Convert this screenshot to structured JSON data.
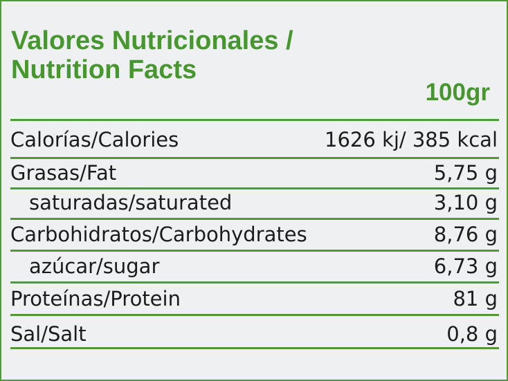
{
  "title_line1": "Valores Nutricionales /",
  "title_line2": "Nutrition Facts",
  "serving": "100gr",
  "rows": [
    {
      "label": "Calorías/Calories",
      "value": "1626 kj/ 385 kcal"
    },
    {
      "label": "Grasas/Fat",
      "value": "5,75 g"
    },
    {
      "label": "saturadas/saturated",
      "value": "3,10 g"
    },
    {
      "label": "Carbohidratos/Carbohydrates",
      "value": "8,76 g"
    },
    {
      "label": "azúcar/sugar",
      "value": "6,73 g"
    },
    {
      "label": "Proteínas/Protein",
      "value": "81 g"
    },
    {
      "label": "Sal/Salt",
      "value": "0,8 g"
    }
  ],
  "colors": {
    "accent": "#4c9b32",
    "background": "#eff0f2",
    "text": "#1c1c1c"
  }
}
